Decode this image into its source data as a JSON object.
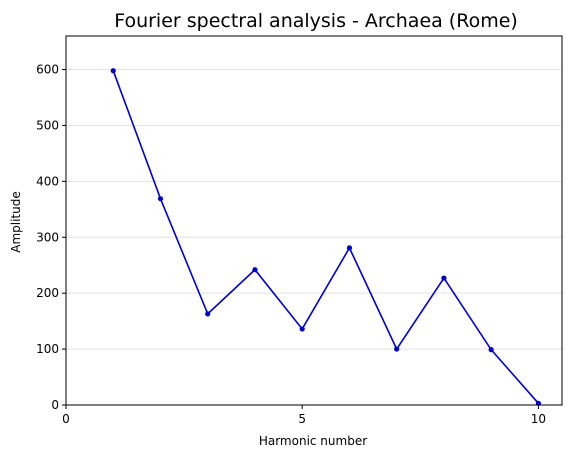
{
  "chart_data": {
    "type": "line",
    "title": "Fourier spectral analysis - Archaea (Rome)",
    "xlabel": "Harmonic number",
    "ylabel": "Amplitude",
    "xlim": [
      0,
      10.5
    ],
    "ylim": [
      0,
      660
    ],
    "xticks": [
      0,
      5,
      10
    ],
    "yticks": [
      0,
      100,
      200,
      300,
      400,
      500,
      600
    ],
    "grid": "y-only",
    "series": [
      {
        "color": "#0000cc",
        "x": [
          1,
          2,
          3,
          4,
          5,
          6,
          7,
          8,
          9,
          10
        ],
        "values": [
          598,
          369,
          163,
          242,
          136,
          281,
          100,
          227,
          99,
          3
        ]
      }
    ]
  }
}
